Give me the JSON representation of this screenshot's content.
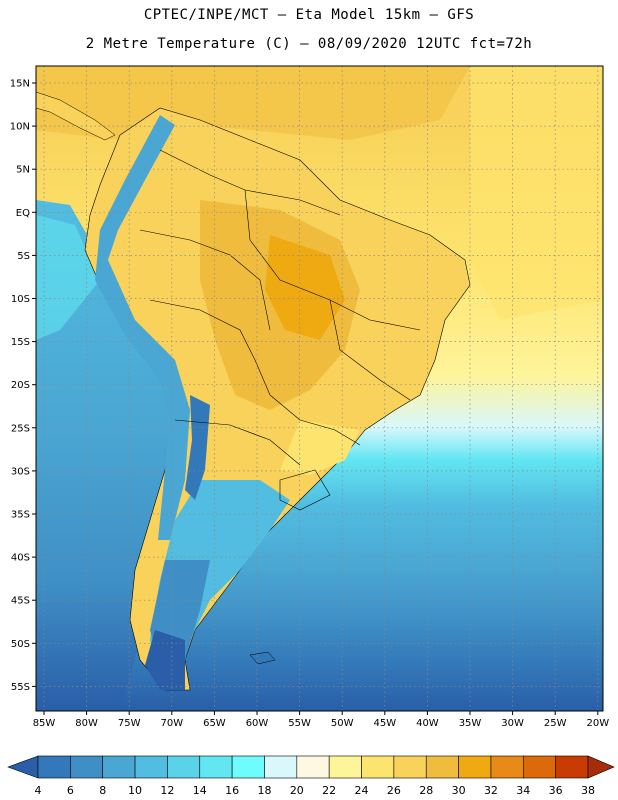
{
  "header": {
    "line1": "CPTEC/INPE/MCT –  Eta Model 15km – GFS",
    "line2": "2 Metre Temperature (C) – 08/09/2020 12UTC fct=72h"
  },
  "map": {
    "lat_ticks": [
      "15N",
      "10N",
      "5N",
      "EQ",
      "5S",
      "10S",
      "15S",
      "20S",
      "25S",
      "30S",
      "35S",
      "40S",
      "45S",
      "50S",
      "55S"
    ],
    "lon_ticks": [
      "85W",
      "80W",
      "75W",
      "70W",
      "65W",
      "60W",
      "55W",
      "50W",
      "45W",
      "40W",
      "35W",
      "30W",
      "25W",
      "20W"
    ]
  },
  "colorbar": {
    "levels": [
      "4",
      "6",
      "8",
      "10",
      "12",
      "14",
      "16",
      "18",
      "20",
      "22",
      "24",
      "26",
      "28",
      "30",
      "32",
      "34",
      "36",
      "38"
    ],
    "colors": [
      "#2a5ea8",
      "#3378b8",
      "#3f8fc6",
      "#4aa6d2",
      "#52bde0",
      "#5ad2e8",
      "#62e6f2",
      "#6ffcfc",
      "#d8f8fc",
      "#fef8e2",
      "#fef49a",
      "#fde46e",
      "#f8d25a",
      "#f0bc3e",
      "#eeaa10",
      "#e88a18",
      "#dd6a0a",
      "#c83c04",
      "#a72c08"
    ]
  }
}
